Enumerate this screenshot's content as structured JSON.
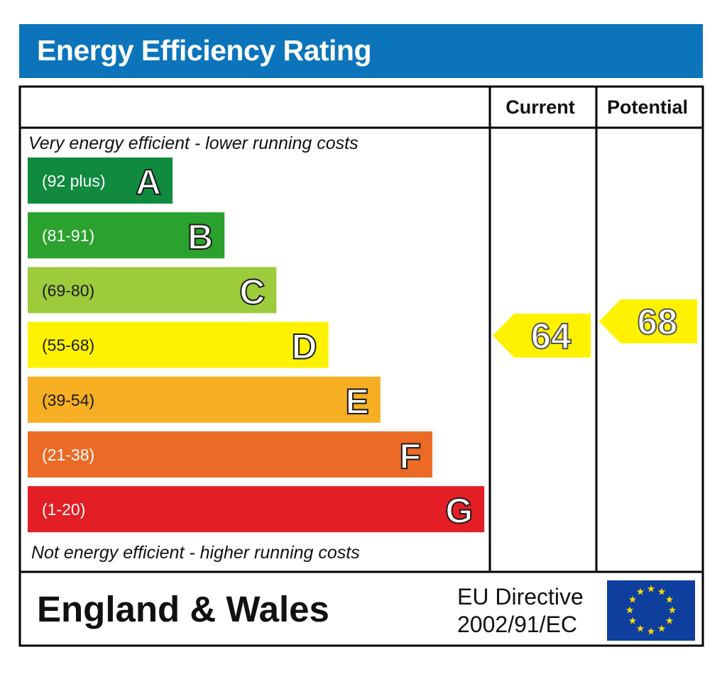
{
  "title": "Energy Efficiency Rating",
  "columns": {
    "current": "Current",
    "potential": "Potential"
  },
  "captions": {
    "top": "Very energy efficient - lower running costs",
    "bottom": "Not energy efficient - higher running costs"
  },
  "footer": {
    "region": "England & Wales",
    "directive_line1": "EU Directive",
    "directive_line2": "2002/91/EC"
  },
  "chart_data": {
    "type": "bar",
    "title": "Energy Efficiency Rating",
    "bands": [
      {
        "letter": "A",
        "range": "(92 plus)",
        "color": "#0f8a3f"
      },
      {
        "letter": "B",
        "range": "(81-91)",
        "color": "#2ba12e"
      },
      {
        "letter": "C",
        "range": "(69-80)",
        "color": "#9ccb3b"
      },
      {
        "letter": "D",
        "range": "(55-68)",
        "color": "#fff200"
      },
      {
        "letter": "E",
        "range": "(39-54)",
        "color": "#f6ae22"
      },
      {
        "letter": "F",
        "range": "(21-38)",
        "color": "#eb6b26"
      },
      {
        "letter": "G",
        "range": "(1-20)",
        "color": "#e31e25"
      }
    ],
    "current": {
      "value": "64",
      "band": "D",
      "color": "#fff200"
    },
    "potential": {
      "value": "68",
      "band": "D",
      "color": "#fff200"
    }
  }
}
